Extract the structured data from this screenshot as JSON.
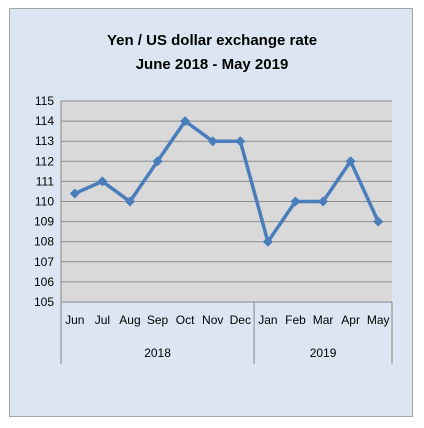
{
  "chart_data": {
    "type": "line",
    "title": "Yen / US dollar exchange rate",
    "subtitle": "June 2018 - May 2019",
    "categories": [
      "Jun",
      "Jul",
      "Aug",
      "Sep",
      "Oct",
      "Nov",
      "Dec",
      "Jan",
      "Feb",
      "Mar",
      "Apr",
      "May"
    ],
    "category_groups": [
      {
        "label": "2018",
        "count": 7
      },
      {
        "label": "2019",
        "count": 5
      }
    ],
    "series": [
      {
        "values": [
          110.4,
          111,
          110,
          112,
          114,
          113,
          113,
          108,
          110,
          110,
          112,
          109
        ]
      }
    ],
    "ylim": [
      105,
      115
    ],
    "yticks": [
      "105",
      "106",
      "107",
      "108",
      "109",
      "110",
      "111",
      "112",
      "113",
      "114",
      "115"
    ],
    "grid": true,
    "line_color": "#4a7ebb",
    "plot_background": "#d9d9d9",
    "chart_background": "#dce6f2"
  }
}
